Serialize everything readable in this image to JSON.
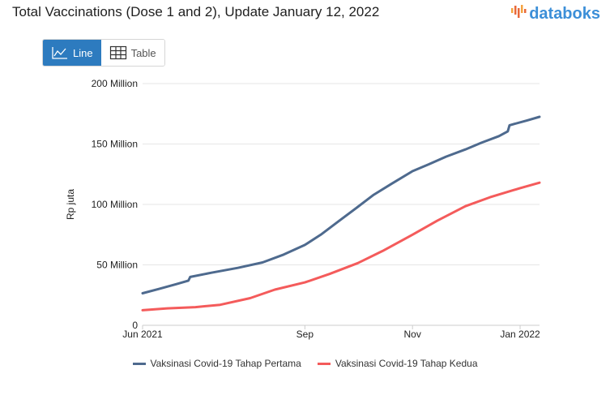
{
  "header": {
    "title": "Total Vaccinations (Dose 1 and 2), Update January 12, 2022",
    "logo_text": "databoks",
    "logo_color": "#3c8fd8"
  },
  "toggle": {
    "line_label": "Line",
    "table_label": "Table",
    "active": "line",
    "active_color": "#2d7bbf"
  },
  "chart_data": {
    "type": "line",
    "title": "Total Vaccinations (Dose 1 and 2), Update January 12, 2022",
    "xlabel": "",
    "ylabel": "Rp juta",
    "x_tick_labels": [
      "Jun 2021",
      "Sep",
      "Nov",
      "Jan 2022"
    ],
    "y_tick_labels": [
      "0",
      "50 Million",
      "100 Million",
      "150 Million",
      "200 Million"
    ],
    "y_ticks": [
      0,
      50000000,
      100000000,
      150000000,
      200000000
    ],
    "ylim": [
      0,
      200000000
    ],
    "xlim": [
      "2021-06-01",
      "2022-01-12"
    ],
    "x_ticks": [
      "2021-06-01",
      "2021-09-01",
      "2021-11-01",
      "2022-01-01"
    ],
    "grid": true,
    "legend_position": "bottom",
    "series": [
      {
        "name": "Vaksinasi Covid-19 Tahap Pertama",
        "color": "#4e6a8e",
        "points": [
          [
            "2021-06-01",
            26500000
          ],
          [
            "2021-06-10",
            30000000
          ],
          [
            "2021-06-20",
            34000000
          ],
          [
            "2021-06-27",
            37000000
          ],
          [
            "2021-06-28",
            40000000
          ],
          [
            "2021-07-10",
            43500000
          ],
          [
            "2021-07-25",
            47500000
          ],
          [
            "2021-08-08",
            52000000
          ],
          [
            "2021-08-20",
            58500000
          ],
          [
            "2021-09-01",
            66500000
          ],
          [
            "2021-09-10",
            75000000
          ],
          [
            "2021-09-20",
            86000000
          ],
          [
            "2021-10-01",
            98000000
          ],
          [
            "2021-10-10",
            108000000
          ],
          [
            "2021-10-20",
            117000000
          ],
          [
            "2021-11-01",
            127500000
          ],
          [
            "2021-11-10",
            133000000
          ],
          [
            "2021-11-20",
            139500000
          ],
          [
            "2021-12-01",
            145500000
          ],
          [
            "2021-12-10",
            151000000
          ],
          [
            "2021-12-20",
            156500000
          ],
          [
            "2021-12-25",
            160500000
          ],
          [
            "2021-12-26",
            165500000
          ],
          [
            "2022-01-05",
            169500000
          ],
          [
            "2022-01-12",
            172500000
          ]
        ]
      },
      {
        "name": "Vaksinasi Covid-19 Tahap Kedua",
        "color": "#f45b5b",
        "points": [
          [
            "2021-06-01",
            12500000
          ],
          [
            "2021-06-15",
            14000000
          ],
          [
            "2021-07-01",
            15000000
          ],
          [
            "2021-07-15",
            17000000
          ],
          [
            "2021-08-01",
            22500000
          ],
          [
            "2021-08-15",
            29500000
          ],
          [
            "2021-09-01",
            35500000
          ],
          [
            "2021-09-15",
            42500000
          ],
          [
            "2021-10-01",
            51500000
          ],
          [
            "2021-10-15",
            61500000
          ],
          [
            "2021-11-01",
            75000000
          ],
          [
            "2021-11-15",
            86500000
          ],
          [
            "2021-12-01",
            98500000
          ],
          [
            "2021-12-15",
            106000000
          ],
          [
            "2022-01-01",
            113500000
          ],
          [
            "2022-01-12",
            118000000
          ]
        ]
      }
    ]
  }
}
